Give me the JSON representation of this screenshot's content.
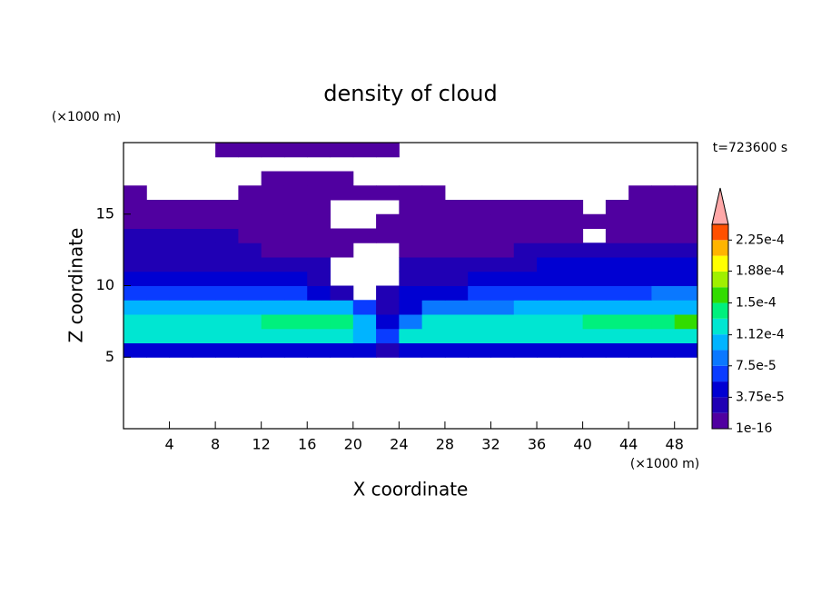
{
  "chart_data": {
    "type": "contour",
    "title": "density of cloud",
    "y_unit": "(×1000 m)",
    "x_unit": "(×1000 m)",
    "time_label": "t=723600 s",
    "xlabel": "X coordinate",
    "ylabel": "Z coordinate",
    "xlim": [
      0,
      50
    ],
    "ylim": [
      0,
      20
    ],
    "xticks": [
      4,
      8,
      12,
      16,
      20,
      24,
      28,
      32,
      36,
      40,
      44,
      48
    ],
    "yticks": [
      5,
      10,
      15
    ],
    "x": [
      1,
      3,
      5,
      7,
      9,
      11,
      13,
      15,
      17,
      19,
      21,
      23,
      25,
      27,
      29,
      31,
      33,
      35,
      37,
      39,
      41,
      43,
      45,
      47,
      49
    ],
    "z": [
      5.5,
      6.5,
      7.5,
      8.5,
      9.5,
      10.5,
      11.5,
      12.5,
      13.5,
      14.5,
      15.5,
      16.5,
      17.5,
      18.5,
      19.5
    ],
    "values": [
      [
        4.7e-05,
        4.7e-05,
        4.7e-05,
        4.7e-05,
        4.7e-05,
        4.7e-05,
        4.7e-05,
        4.7e-05,
        4.7e-05,
        4.7e-05,
        4.7e-05,
        2.8e-05,
        4.7e-05,
        4.7e-05,
        4.7e-05,
        4.7e-05,
        4.7e-05,
        4.7e-05,
        4.7e-05,
        4.7e-05,
        4.7e-05,
        4.7e-05,
        4.7e-05,
        4.7e-05,
        4.7e-05
      ],
      [
        0.000122,
        0.000122,
        0.000122,
        0.000122,
        0.000122,
        0.000122,
        0.000122,
        0.000122,
        0.000122,
        0.000122,
        0.000103,
        6.6e-05,
        0.000122,
        0.000122,
        0.000122,
        0.000122,
        0.000122,
        0.000122,
        0.000122,
        0.000122,
        0.000122,
        0.000122,
        0.000122,
        0.000122,
        0.000122
      ],
      [
        0.000122,
        0.000122,
        0.000122,
        0.000122,
        0.000122,
        0.000122,
        0.000141,
        0.000141,
        0.000141,
        0.000141,
        0.000103,
        4.7e-05,
        8.4e-05,
        0.000122,
        0.000122,
        0.000122,
        0.000122,
        0.000122,
        0.000122,
        0.000122,
        0.000141,
        0.000141,
        0.000141,
        0.000141,
        0.00016
      ],
      [
        0.000103,
        0.000103,
        0.000103,
        0.000103,
        0.000103,
        0.000103,
        0.000103,
        0.000103,
        0.000103,
        0.000103,
        6.6e-05,
        2.8e-05,
        4.7e-05,
        8.4e-05,
        8.4e-05,
        8.4e-05,
        8.4e-05,
        0.000103,
        0.000103,
        0.000103,
        0.000103,
        0.000103,
        0.000103,
        0.000103,
        0.000103
      ],
      [
        6.6e-05,
        6.6e-05,
        6.6e-05,
        6.6e-05,
        6.6e-05,
        6.6e-05,
        6.6e-05,
        6.6e-05,
        4.7e-05,
        2.8e-05,
        null,
        2.8e-05,
        4.7e-05,
        4.7e-05,
        4.7e-05,
        6.6e-05,
        6.6e-05,
        6.6e-05,
        6.6e-05,
        6.6e-05,
        6.6e-05,
        6.6e-05,
        6.6e-05,
        8.4e-05,
        8.4e-05
      ],
      [
        4.7e-05,
        4.7e-05,
        4.7e-05,
        4.7e-05,
        4.7e-05,
        4.7e-05,
        4.7e-05,
        4.7e-05,
        2.8e-05,
        null,
        null,
        null,
        2.8e-05,
        2.8e-05,
        2.8e-05,
        4.7e-05,
        4.7e-05,
        4.7e-05,
        4.7e-05,
        4.7e-05,
        4.7e-05,
        4.7e-05,
        4.7e-05,
        4.7e-05,
        4.7e-05
      ],
      [
        2.8e-05,
        2.8e-05,
        2.8e-05,
        2.8e-05,
        2.8e-05,
        2.8e-05,
        2.8e-05,
        2.8e-05,
        2.8e-05,
        null,
        null,
        null,
        2.8e-05,
        2.8e-05,
        2.8e-05,
        2.8e-05,
        2.8e-05,
        2.8e-05,
        4.7e-05,
        4.7e-05,
        4.7e-05,
        4.7e-05,
        4.7e-05,
        4.7e-05,
        4.7e-05
      ],
      [
        2.8e-05,
        2.8e-05,
        2.8e-05,
        2.8e-05,
        2.8e-05,
        2.8e-05,
        9e-06,
        9e-06,
        9e-06,
        9e-06,
        null,
        null,
        9e-06,
        9e-06,
        9e-06,
        9e-06,
        9e-06,
        2.8e-05,
        2.8e-05,
        2.8e-05,
        2.8e-05,
        2.8e-05,
        2.8e-05,
        2.8e-05,
        2.8e-05
      ],
      [
        2.8e-05,
        2.8e-05,
        2.8e-05,
        2.8e-05,
        2.8e-05,
        9e-06,
        9e-06,
        9e-06,
        9e-06,
        9e-06,
        9e-06,
        9e-06,
        9e-06,
        9e-06,
        9e-06,
        9e-06,
        9e-06,
        9e-06,
        9e-06,
        9e-06,
        null,
        9e-06,
        9e-06,
        9e-06,
        9e-06
      ],
      [
        9e-06,
        9e-06,
        9e-06,
        9e-06,
        9e-06,
        9e-06,
        9e-06,
        9e-06,
        9e-06,
        null,
        null,
        9e-06,
        9e-06,
        9e-06,
        9e-06,
        9e-06,
        9e-06,
        9e-06,
        9e-06,
        9e-06,
        9e-06,
        9e-06,
        9e-06,
        9e-06,
        9e-06
      ],
      [
        9e-06,
        9e-06,
        9e-06,
        9e-06,
        9e-06,
        9e-06,
        9e-06,
        9e-06,
        9e-06,
        null,
        null,
        null,
        9e-06,
        9e-06,
        9e-06,
        9e-06,
        9e-06,
        9e-06,
        9e-06,
        9e-06,
        null,
        9e-06,
        9e-06,
        9e-06,
        9e-06
      ],
      [
        9e-06,
        null,
        null,
        null,
        null,
        9e-06,
        9e-06,
        9e-06,
        9e-06,
        9e-06,
        9e-06,
        9e-06,
        9e-06,
        9e-06,
        null,
        null,
        null,
        null,
        null,
        null,
        null,
        null,
        9e-06,
        9e-06,
        9e-06
      ],
      [
        null,
        null,
        null,
        null,
        null,
        null,
        9e-06,
        9e-06,
        9e-06,
        9e-06,
        null,
        null,
        null,
        null,
        null,
        null,
        null,
        null,
        null,
        null,
        null,
        null,
        null,
        null,
        null
      ],
      [
        null,
        null,
        null,
        null,
        null,
        null,
        null,
        null,
        null,
        null,
        null,
        null,
        null,
        null,
        null,
        null,
        null,
        null,
        null,
        null,
        null,
        null,
        null,
        null,
        null
      ],
      [
        null,
        null,
        null,
        null,
        9e-06,
        9e-06,
        9e-06,
        9e-06,
        9e-06,
        9e-06,
        9e-06,
        9e-06,
        null,
        null,
        null,
        null,
        null,
        null,
        null,
        null,
        null,
        null,
        null,
        null,
        null
      ]
    ],
    "levels": [
      1e-16,
      1.875e-05,
      3.75e-05,
      5.625e-05,
      7.5e-05,
      9.375e-05,
      0.0001125,
      0.00013125,
      0.00015,
      0.00016875,
      0.0001875,
      0.00020625,
      0.000225,
      0.00024375
    ],
    "colors": [
      "#5000a0",
      "#2000b4",
      "#0000d2",
      "#0a3cff",
      "#0a78ff",
      "#00b4ff",
      "#00e6d2",
      "#00f07d",
      "#32dc00",
      "#a0f000",
      "#ffff00",
      "#ffb400",
      "#ff5000"
    ],
    "extend_color": "#ffa8a8",
    "colorbar_ticks": [
      {
        "value": 1e-16,
        "label": "1e-16"
      },
      {
        "value": 3.75e-05,
        "label": "3.75e-5"
      },
      {
        "value": 7.5e-05,
        "label": "7.5e-5"
      },
      {
        "value": 0.000112,
        "label": "1.12e-4"
      },
      {
        "value": 0.00015,
        "label": "1.5e-4"
      },
      {
        "value": 0.000188,
        "label": "1.88e-4"
      },
      {
        "value": 0.000225,
        "label": "2.25e-4"
      }
    ]
  }
}
